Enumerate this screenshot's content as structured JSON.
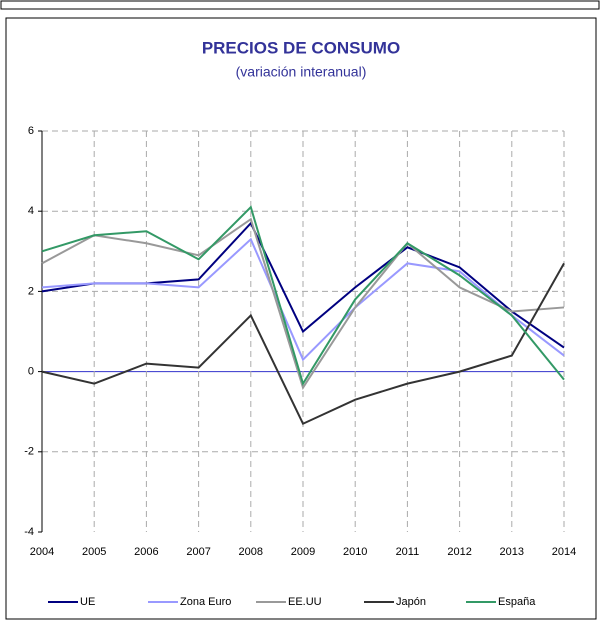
{
  "chart_data": {
    "type": "line",
    "title": "PRECIOS DE CONSUMO",
    "subtitle": "(variación interanual)",
    "categories": [
      "2004",
      "2005",
      "2006",
      "2007",
      "2008",
      "2009",
      "2010",
      "2011",
      "2012",
      "2013",
      "2014"
    ],
    "series": [
      {
        "name": "UE",
        "color": "#000080",
        "values": [
          2.0,
          2.2,
          2.2,
          2.3,
          3.7,
          1.0,
          2.1,
          3.1,
          2.6,
          1.5,
          0.6
        ]
      },
      {
        "name": "Zona Euro",
        "color": "#9999ff",
        "values": [
          2.1,
          2.2,
          2.2,
          2.1,
          3.3,
          0.3,
          1.6,
          2.7,
          2.5,
          1.4,
          0.4
        ]
      },
      {
        "name": "EE.UU",
        "color": "#999999",
        "values": [
          2.7,
          3.4,
          3.2,
          2.9,
          3.8,
          -0.4,
          1.6,
          3.2,
          2.1,
          1.5,
          1.6
        ]
      },
      {
        "name": "Japón",
        "color": "#333333",
        "values": [
          0.0,
          -0.3,
          0.2,
          0.1,
          1.4,
          -1.3,
          -0.7,
          -0.3,
          0.0,
          0.4,
          2.7
        ]
      },
      {
        "name": "España",
        "color": "#339966",
        "values": [
          3.0,
          3.4,
          3.5,
          2.8,
          4.1,
          -0.3,
          1.8,
          3.2,
          2.4,
          1.4,
          -0.2
        ]
      }
    ],
    "ylim": [
      -4,
      6
    ],
    "yticks": [
      -4,
      -2,
      0,
      2,
      4,
      6
    ],
    "grid": true
  }
}
